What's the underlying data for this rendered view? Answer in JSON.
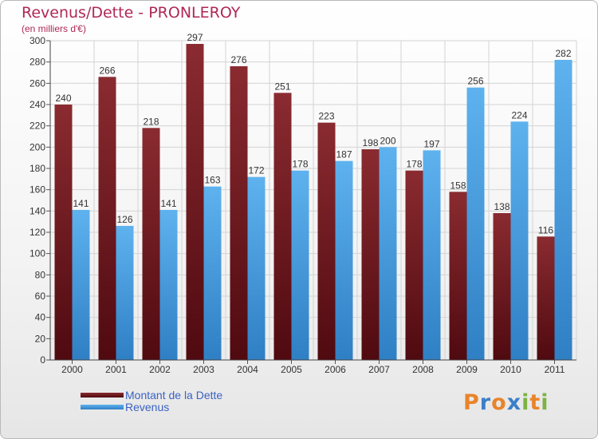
{
  "chart_data": {
    "type": "bar",
    "title": "Revenus/Dette - PRONLEROY",
    "subtitle": "(en milliers d'€)",
    "categories": [
      "2000",
      "2001",
      "2002",
      "2003",
      "2004",
      "2005",
      "2006",
      "2007",
      "2008",
      "2009",
      "2010",
      "2011"
    ],
    "series": [
      {
        "name": "Montant de la Dette",
        "color": "#7a1f24",
        "values": [
          240,
          266,
          218,
          297,
          276,
          251,
          223,
          198,
          178,
          158,
          138,
          116
        ]
      },
      {
        "name": "Revenus",
        "color": "#4aa3e6",
        "values": [
          141,
          126,
          141,
          163,
          172,
          178,
          187,
          200,
          197,
          256,
          224,
          282
        ]
      }
    ],
    "ylim": [
      0,
      300
    ],
    "yticks": [
      0,
      20,
      40,
      60,
      80,
      100,
      120,
      140,
      160,
      180,
      200,
      220,
      240,
      260,
      280,
      300
    ],
    "grid": true,
    "legend_position": "bottom-left"
  },
  "logo": {
    "text": "Proxiti",
    "letters": [
      {
        "ch": "P",
        "color": "#e8842a"
      },
      {
        "ch": "r",
        "color": "#3b7fc9"
      },
      {
        "ch": "o",
        "color": "#e8842a"
      },
      {
        "ch": "x",
        "color": "#3b7fc9"
      },
      {
        "ch": "i",
        "color": "#7cb342"
      },
      {
        "ch": "t",
        "color": "#e8842a"
      },
      {
        "ch": "i",
        "color": "#7cb342"
      }
    ]
  }
}
